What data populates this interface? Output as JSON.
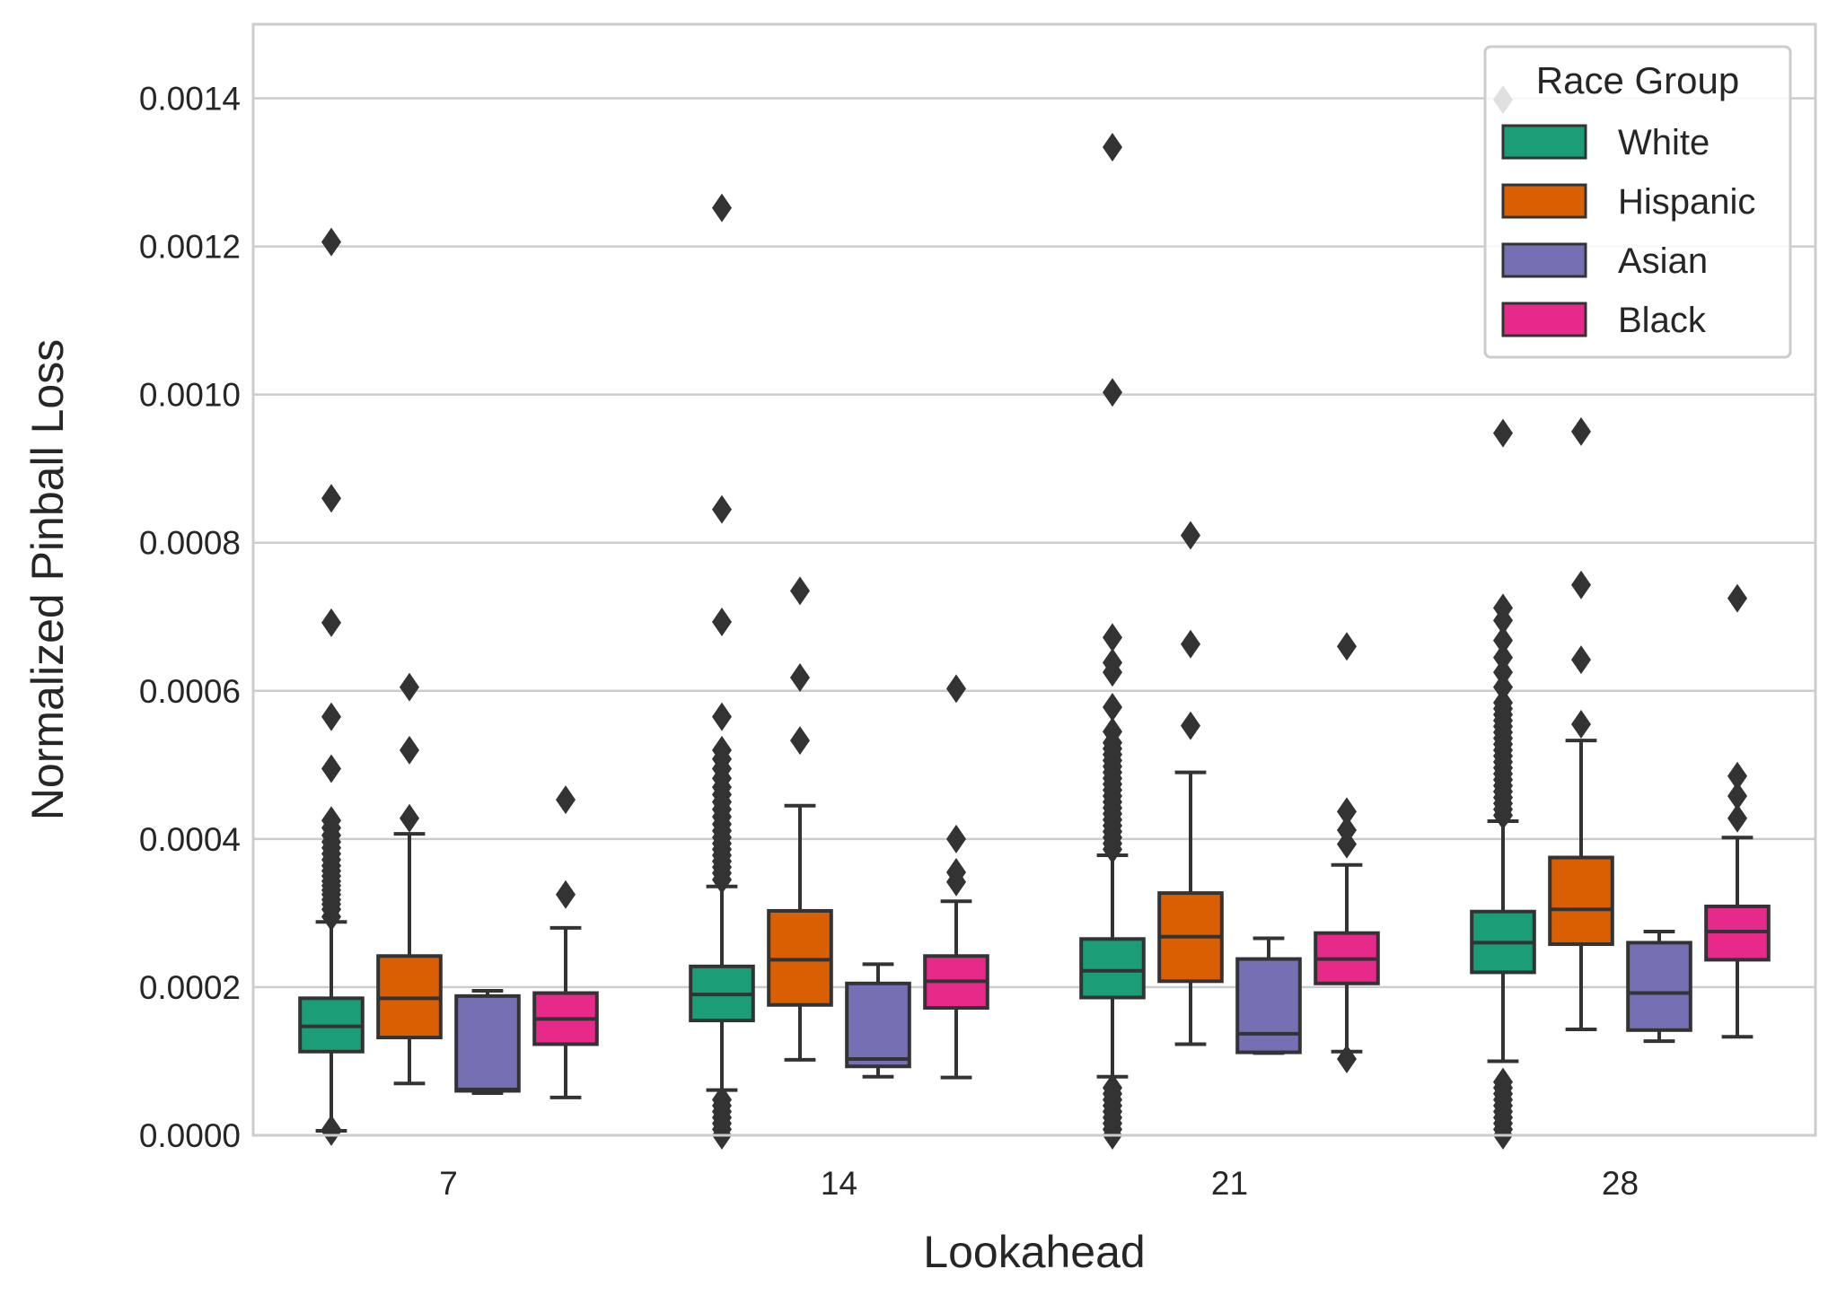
{
  "chart_data": {
    "type": "box",
    "xlabel": "Lookahead",
    "ylabel": "Normalized Pinball Loss",
    "ylim": [
      0,
      0.0015
    ],
    "grid": true,
    "categories": [
      "7",
      "14",
      "21",
      "28"
    ],
    "yticks": [
      "0.0000",
      "0.0002",
      "0.0004",
      "0.0006",
      "0.0008",
      "0.0010",
      "0.0012",
      "0.0014"
    ],
    "legend": {
      "title": "Race Group",
      "placement": "top-right"
    },
    "series": [
      {
        "name": "White",
        "color": "#1b9e77",
        "boxes": [
          {
            "q1": 0.000113,
            "median": 0.000147,
            "q3": 0.000185,
            "whisker_low": 6e-06,
            "whisker_high": 0.000288,
            "outliers": [
              5e-06,
              8e-06,
              0.000295,
              0.000305,
              0.000312,
              0.000318,
              0.000325,
              0.000331,
              0.000337,
              0.000343,
              0.00035,
              0.000357,
              0.000364,
              0.000372,
              0.00038,
              0.000388,
              0.000396,
              0.000405,
              0.000415,
              0.000425,
              0.000495,
              0.000565,
              0.000692,
              0.00086,
              0.001206
            ]
          },
          {
            "q1": 0.000155,
            "median": 0.00019,
            "q3": 0.000228,
            "whisker_low": 6.1e-05,
            "whisker_high": 0.000336,
            "outliers": [
              0.0,
              8e-06,
              1.6e-05,
              2.4e-05,
              3.2e-05,
              4e-05,
              4.8e-05,
              0.000345,
              0.000354,
              0.000362,
              0.00037,
              0.000378,
              0.000386,
              0.000394,
              0.000402,
              0.000411,
              0.00042,
              0.00043,
              0.00044,
              0.00045,
              0.00046,
              0.00047,
              0.000482,
              0.000495,
              0.000508,
              0.00052,
              0.000565,
              0.000693,
              0.000845,
              0.001252
            ]
          },
          {
            "q1": 0.000186,
            "median": 0.000222,
            "q3": 0.000265,
            "whisker_low": 7.9e-05,
            "whisker_high": 0.000378,
            "outliers": [
              0.0,
              8e-06,
              1.6e-05,
              2.4e-05,
              3.2e-05,
              4e-05,
              4.8e-05,
              5.6e-05,
              6.4e-05,
              0.000386,
              0.000394,
              0.000402,
              0.00041,
              0.000418,
              0.000426,
              0.000434,
              0.000442,
              0.00045,
              0.000458,
              0.000466,
              0.000474,
              0.000482,
              0.00049,
              0.000498,
              0.000506,
              0.000514,
              0.000522,
              0.00053,
              0.000545,
              0.000578,
              0.000625,
              0.000638,
              0.000672,
              0.001003,
              0.001334
            ]
          },
          {
            "q1": 0.00022,
            "median": 0.00026,
            "q3": 0.000302,
            "whisker_low": 0.0001,
            "whisker_high": 0.000424,
            "outliers": [
              0.0,
              8e-06,
              1.6e-05,
              2.4e-05,
              3.2e-05,
              4e-05,
              4.8e-05,
              5.6e-05,
              6.4e-05,
              7.2e-05,
              0.000432,
              0.00044,
              0.000448,
              0.000456,
              0.000464,
              0.000472,
              0.00048,
              0.000488,
              0.000496,
              0.000504,
              0.000512,
              0.00052,
              0.000528,
              0.000536,
              0.000544,
              0.000552,
              0.00056,
              0.000568,
              0.000576,
              0.000584,
              0.000605,
              0.000625,
              0.000645,
              0.000668,
              0.000695,
              0.000712,
              0.000948,
              0.001398
            ]
          }
        ]
      },
      {
        "name": "Hispanic",
        "color": "#d95f02",
        "boxes": [
          {
            "q1": 0.000132,
            "median": 0.000185,
            "q3": 0.000242,
            "whisker_low": 7e-05,
            "whisker_high": 0.000407,
            "outliers": [
              0.000428,
              0.00052,
              0.000605
            ]
          },
          {
            "q1": 0.000176,
            "median": 0.000237,
            "q3": 0.000303,
            "whisker_low": 0.000102,
            "whisker_high": 0.000445,
            "outliers": [
              0.000533,
              0.000618,
              0.000735
            ]
          },
          {
            "q1": 0.000208,
            "median": 0.000268,
            "q3": 0.000327,
            "whisker_low": 0.000123,
            "whisker_high": 0.00049,
            "outliers": [
              0.000553,
              0.000663,
              0.00081
            ]
          },
          {
            "q1": 0.000258,
            "median": 0.000305,
            "q3": 0.000375,
            "whisker_low": 0.000143,
            "whisker_high": 0.000533,
            "outliers": [
              0.000555,
              0.000642,
              0.000743,
              0.00095
            ]
          }
        ]
      },
      {
        "name": "Asian",
        "color": "#7570b3",
        "boxes": [
          {
            "q1": 6e-05,
            "median": 6.2e-05,
            "q3": 0.000188,
            "whisker_low": 5.7e-05,
            "whisker_high": 0.000195,
            "outliers": []
          },
          {
            "q1": 9.3e-05,
            "median": 0.000103,
            "q3": 0.000205,
            "whisker_low": 7.9e-05,
            "whisker_high": 0.000231,
            "outliers": []
          },
          {
            "q1": 0.000112,
            "median": 0.000137,
            "q3": 0.000238,
            "whisker_low": 0.000111,
            "whisker_high": 0.000266,
            "outliers": []
          },
          {
            "q1": 0.000142,
            "median": 0.000192,
            "q3": 0.00026,
            "whisker_low": 0.000127,
            "whisker_high": 0.000275,
            "outliers": []
          }
        ]
      },
      {
        "name": "Black",
        "color": "#e7298a",
        "boxes": [
          {
            "q1": 0.000123,
            "median": 0.000157,
            "q3": 0.000192,
            "whisker_low": 5.1e-05,
            "whisker_high": 0.00028,
            "outliers": [
              0.000325,
              0.000453
            ]
          },
          {
            "q1": 0.000172,
            "median": 0.000208,
            "q3": 0.000242,
            "whisker_low": 7.8e-05,
            "whisker_high": 0.000316,
            "outliers": [
              0.000342,
              0.000355,
              0.0004,
              0.000603
            ]
          },
          {
            "q1": 0.000205,
            "median": 0.000238,
            "q3": 0.000273,
            "whisker_low": 0.000113,
            "whisker_high": 0.000365,
            "outliers": [
              0.000103,
              0.000393,
              0.000412,
              0.000437,
              0.00066
            ]
          },
          {
            "q1": 0.000237,
            "median": 0.000275,
            "q3": 0.000309,
            "whisker_low": 0.000133,
            "whisker_high": 0.000402,
            "outliers": [
              0.000428,
              0.000458,
              0.000485,
              0.000725
            ]
          }
        ]
      }
    ]
  }
}
